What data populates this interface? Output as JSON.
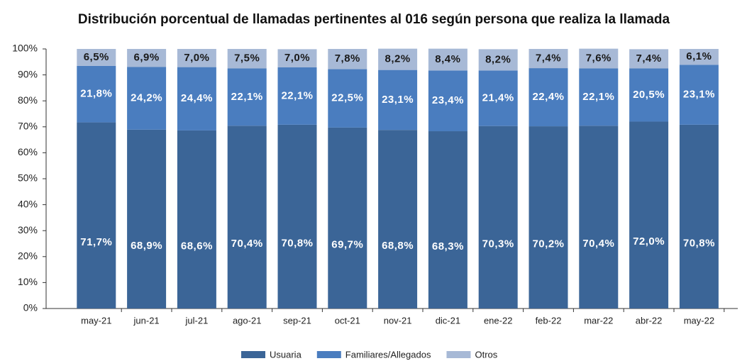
{
  "chart_data": {
    "type": "stacked_bar",
    "title": "Distribución porcentual de llamadas pertinentes al 016 según persona que realiza la llamada",
    "categories": [
      "may-21",
      "jun-21",
      "jul-21",
      "ago-21",
      "sep-21",
      "oct-21",
      "nov-21",
      "dic-21",
      "ene-22",
      "feb-22",
      "mar-22",
      "abr-22",
      "may-22"
    ],
    "series": [
      {
        "name": "Usuaria",
        "color": "#3b6597",
        "values": [
          71.7,
          68.9,
          68.6,
          70.4,
          70.8,
          69.7,
          68.8,
          68.3,
          70.3,
          70.2,
          70.4,
          72.0,
          70.8
        ],
        "value_labels": [
          "71,7%",
          "68,9%",
          "68,6%",
          "70,4%",
          "70,8%",
          "69,7%",
          "68,8%",
          "68,3%",
          "70,3%",
          "70,2%",
          "70,4%",
          "72,0%",
          "70,8%"
        ]
      },
      {
        "name": "Familiares/Allegados",
        "color": "#4a7dbf",
        "values": [
          21.8,
          24.2,
          24.4,
          22.1,
          22.1,
          22.5,
          23.1,
          23.4,
          21.4,
          22.4,
          22.1,
          20.5,
          23.1
        ],
        "value_labels": [
          "21,8%",
          "24,2%",
          "24,4%",
          "22,1%",
          "22,1%",
          "22,5%",
          "23,1%",
          "23,4%",
          "21,4%",
          "22,4%",
          "22,1%",
          "20,5%",
          "23,1%"
        ]
      },
      {
        "name": "Otros",
        "color": "#a7b9d6",
        "values": [
          6.5,
          6.9,
          7.0,
          7.5,
          7.0,
          7.8,
          8.2,
          8.4,
          8.2,
          7.4,
          7.6,
          7.4,
          6.1
        ],
        "value_labels": [
          "6,5%",
          "6,9%",
          "7,0%",
          "7,5%",
          "7,0%",
          "7,8%",
          "8,2%",
          "8,4%",
          "8,2%",
          "7,4%",
          "7,6%",
          "7,4%",
          "6,1%"
        ]
      }
    ],
    "ylim": [
      0,
      100
    ],
    "yticks": [
      {
        "value": 0,
        "label": "0%"
      },
      {
        "value": 10,
        "label": "10%"
      },
      {
        "value": 20,
        "label": "20%"
      },
      {
        "value": 30,
        "label": "30%"
      },
      {
        "value": 40,
        "label": "40%"
      },
      {
        "value": 50,
        "label": "50%"
      },
      {
        "value": 60,
        "label": "60%"
      },
      {
        "value": 70,
        "label": "70%"
      },
      {
        "value": 80,
        "label": "80%"
      },
      {
        "value": 90,
        "label": "90%"
      },
      {
        "value": 100,
        "label": "100%"
      }
    ]
  }
}
